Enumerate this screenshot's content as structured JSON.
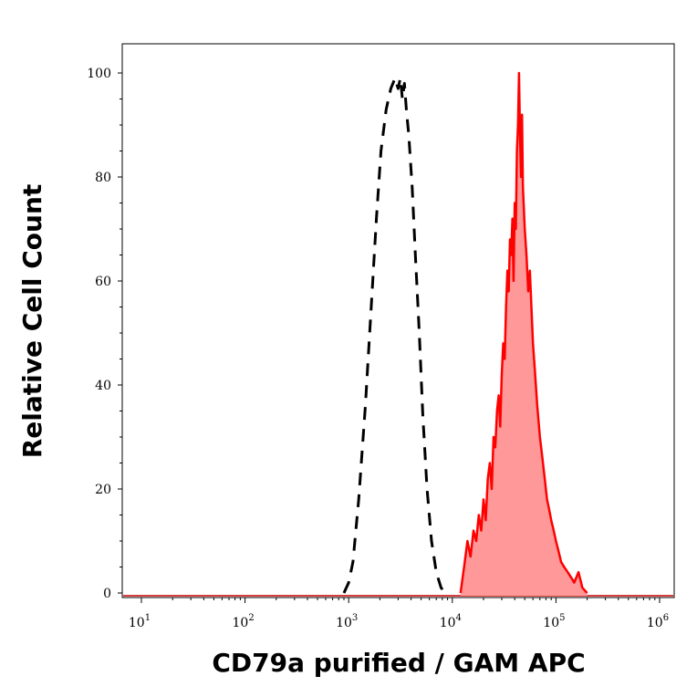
{
  "chart_data": {
    "type": "area",
    "xlabel": "CD79a purified / GAM APC",
    "ylabel": "Relative Cell Count",
    "x_scale": "log10",
    "xlim": [
      10,
      1000000
    ],
    "ylim": [
      0,
      100
    ],
    "x_ticks": [
      {
        "value": 10,
        "base": "10",
        "exp": "1"
      },
      {
        "value": 100,
        "base": "10",
        "exp": "2"
      },
      {
        "value": 1000,
        "base": "10",
        "exp": "3"
      },
      {
        "value": 10000,
        "base": "10",
        "exp": "4"
      },
      {
        "value": 100000,
        "base": "10",
        "exp": "5"
      },
      {
        "value": 1000000,
        "base": "10",
        "exp": "6"
      }
    ],
    "y_ticks": [
      0,
      20,
      40,
      60,
      80,
      100
    ],
    "grid": false,
    "series": [
      {
        "style": "dashed-black-outline",
        "color": "#000000",
        "x": [
          900,
          1000,
          1100,
          1250,
          1450,
          1650,
          1850,
          2050,
          2300,
          2550,
          2800,
          3000,
          3150,
          3300,
          3450,
          3600,
          3800,
          4100,
          4400,
          4800,
          5200,
          5700,
          6300,
          7000,
          7800,
          8600
        ],
        "y": [
          0,
          2,
          6,
          18,
          36,
          55,
          72,
          85,
          93,
          97,
          99,
          97,
          99,
          95,
          98,
          93,
          88,
          78,
          65,
          50,
          34,
          20,
          10,
          4,
          1,
          0
        ]
      },
      {
        "style": "red-filled",
        "color": "#ff0000",
        "fill": "#ff9999",
        "x": [
          12000,
          13000,
          14000,
          15000,
          16000,
          17000,
          18000,
          19000,
          20000,
          21000,
          22000,
          23000,
          24000,
          25000,
          26000,
          27000,
          28000,
          29000,
          30000,
          31000,
          32000,
          33000,
          34000,
          35000,
          36000,
          37000,
          38000,
          39000,
          40000,
          41000,
          42000,
          43000,
          44000,
          45000,
          46000,
          47000,
          48000,
          50000,
          52000,
          54000,
          56000,
          58000,
          60000,
          63000,
          66000,
          70000,
          74000,
          78000,
          82000,
          86000,
          90000,
          95000,
          100000,
          106000,
          112000,
          120000,
          130000,
          140000,
          150000,
          165000,
          180000,
          200000
        ],
        "y": [
          0,
          5,
          10,
          7,
          12,
          10,
          15,
          12,
          18,
          14,
          22,
          25,
          20,
          30,
          28,
          35,
          38,
          32,
          42,
          48,
          45,
          55,
          62,
          58,
          68,
          65,
          72,
          60,
          75,
          70,
          85,
          90,
          100,
          88,
          80,
          92,
          78,
          70,
          65,
          58,
          62,
          55,
          48,
          42,
          36,
          30,
          26,
          22,
          18,
          16,
          14,
          12,
          10,
          8,
          6,
          5,
          4,
          3,
          2,
          4,
          1,
          0
        ]
      }
    ]
  }
}
